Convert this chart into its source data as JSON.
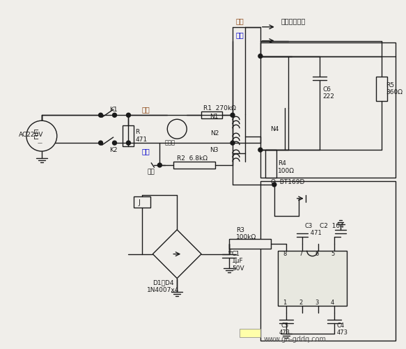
{
  "bg_color": "#f0eeea",
  "line_color": "#1a1a1a",
  "text_color": "#1a1a1a",
  "title": "",
  "labels": {
    "ac220v": "AC220V",
    "k1": "K1",
    "k2": "K2",
    "r471": "R\n471",
    "r1": "R1  270kΩ",
    "r2": "R2  6.8kΩ",
    "r3": "R3\n100kΩ",
    "r4": "R4\n100Ω",
    "r5": "R5\n360Ω",
    "c1": "C1\n1μF\n50V",
    "c2": "C2  104",
    "c3": "C3\n   471",
    "c4": "C4\n473",
    "c5": "C5\n473",
    "c6": "C6\n222",
    "n1": "N1",
    "n2": "N2",
    "n3": "N3",
    "n4": "N4",
    "q": "Q  BT169D",
    "d1d4": "D1～D4\n1N4007x4",
    "zhishi": "指示灯",
    "shiyan": "试验",
    "zongse": "棕色",
    "lanse": "蓝色",
    "zongse2": "棕色",
    "lanse2": "蓝色",
    "heater": "去水箱加热器",
    "logo": "www.go-gddq.com"
  }
}
